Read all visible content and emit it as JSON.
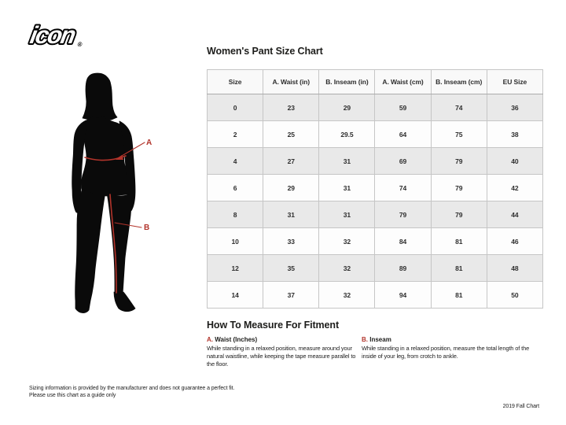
{
  "logo": {
    "brand": "icon",
    "registered_mark": "®"
  },
  "size_chart": {
    "title": "Women's Pant Size Chart",
    "columns": [
      "Size",
      "A. Waist (in)",
      "B. Inseam (in)",
      "A. Waist (cm)",
      "B. Inseam (cm)",
      "EU Size"
    ],
    "rows": [
      [
        "0",
        "23",
        "29",
        "59",
        "74",
        "36"
      ],
      [
        "2",
        "25",
        "29.5",
        "64",
        "75",
        "38"
      ],
      [
        "4",
        "27",
        "31",
        "69",
        "79",
        "40"
      ],
      [
        "6",
        "29",
        "31",
        "74",
        "79",
        "42"
      ],
      [
        "8",
        "31",
        "31",
        "79",
        "79",
        "44"
      ],
      [
        "10",
        "33",
        "32",
        "84",
        "81",
        "46"
      ],
      [
        "12",
        "35",
        "32",
        "89",
        "81",
        "48"
      ],
      [
        "14",
        "37",
        "32",
        "94",
        "81",
        "50"
      ]
    ]
  },
  "figure": {
    "waist_label": "A",
    "inseam_label": "B"
  },
  "how_to_measure": {
    "heading": "How To Measure For Fitment",
    "items": [
      {
        "marker": "A.",
        "title": "Waist (Inches)",
        "description": "While standing in a relaxed position, measure around your natural waistline, while keeping the tape measure parallel to the floor."
      },
      {
        "marker": "B.",
        "title": "Inseam",
        "description": "While standing in a relaxed position, measure the total length of the inside of your leg, from crotch to ankle."
      }
    ]
  },
  "footer": {
    "disclaimer": [
      "Sizing information is provided by the manufacturer and does not guarantee a perfect fit.",
      "Please use this chart as a guide only"
    ],
    "edition": "2019 Fall Chart"
  },
  "colors": {
    "accent_red": "#b2342b",
    "row_shaded": "#e9e9e9",
    "row_plain": "#fdfdfd",
    "table_border": "#c6c6c6",
    "text_dark": "#1d1d1b"
  }
}
